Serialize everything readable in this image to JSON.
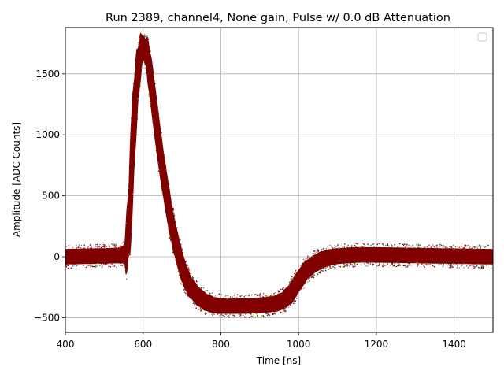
{
  "chart_data": {
    "type": "scatter",
    "title": "Run 2389, channel4, None gain, Pulse w/ 0.0 dB Attenuation",
    "xlabel": "Time [ns]",
    "ylabel": "Amplitude [ADC Counts]",
    "xlim": [
      400,
      1500
    ],
    "ylim": [
      -620,
      1880
    ],
    "xticks": [
      400,
      600,
      800,
      1000,
      1200,
      1400
    ],
    "yticks": [
      -500,
      0,
      500,
      1000,
      1500
    ],
    "xtick_labels": [
      "400",
      "600",
      "800",
      "1000",
      "1200",
      "1400"
    ],
    "ytick_labels": [
      "−500",
      "0",
      "500",
      "1000",
      "1500"
    ],
    "grid": true,
    "legend": "top-right, empty",
    "series_color": "#800000",
    "waveform_mean": {
      "x": [
        400,
        540,
        555,
        565,
        575,
        585,
        595,
        600,
        610,
        620,
        630,
        640,
        650,
        660,
        670,
        680,
        690,
        700,
        710,
        720,
        740,
        760,
        780,
        800,
        850,
        900,
        940,
        960,
        980,
        1000,
        1020,
        1040,
        1060,
        1080,
        1100,
        1150,
        1200,
        1300,
        1400,
        1500
      ],
      "y": [
        0,
        10,
        30,
        350,
        1000,
        1450,
        1680,
        1720,
        1650,
        1450,
        1200,
        950,
        720,
        520,
        330,
        170,
        40,
        -80,
        -170,
        -240,
        -320,
        -370,
        -395,
        -405,
        -405,
        -400,
        -385,
        -360,
        -300,
        -200,
        -110,
        -60,
        -25,
        -5,
        5,
        15,
        15,
        10,
        5,
        0
      ]
    },
    "noise_band_halfwidth": 60
  }
}
